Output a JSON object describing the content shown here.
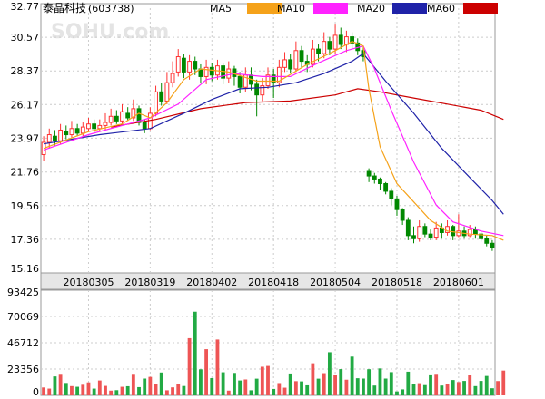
{
  "header": {
    "stock_title": "泰晶科技",
    "stock_code": "(603738)",
    "watermark": "SOHU.com"
  },
  "legend": [
    {
      "label": "MA5",
      "color": "#f5a21a"
    },
    {
      "label": "MA10",
      "color": "#ff22ff"
    },
    {
      "label": "MA20",
      "color": "#1f22a8"
    },
    {
      "label": "MA60",
      "color": "#cc0000"
    }
  ],
  "colors": {
    "up": "#ff3333",
    "down": "#008800",
    "vol_up": "#ee5555",
    "vol_down": "#22aa44",
    "grid": "#cccccc",
    "axis_band": "#e6e6e6"
  },
  "chart_data": [
    {
      "type": "candlestick",
      "ylim": [
        15.16,
        32.77
      ],
      "ytick_labels": [
        "32.77",
        "30.57",
        "28.37",
        "26.17",
        "23.97",
        "21.76",
        "19.56",
        "17.36",
        "15.16"
      ],
      "xtick_labels": [
        {
          "index": 8,
          "label": "20180305"
        },
        {
          "index": 19,
          "label": "20180319"
        },
        {
          "index": 30,
          "label": "20180402"
        },
        {
          "index": 41,
          "label": "20180418"
        },
        {
          "index": 52,
          "label": "20180504"
        },
        {
          "index": 63,
          "label": "20180518"
        },
        {
          "index": 74,
          "label": "20180601"
        }
      ],
      "candles": [
        [
          22.9,
          23.7,
          24.1,
          22.5
        ],
        [
          23.7,
          24.2,
          24.6,
          23.3
        ],
        [
          24.1,
          23.8,
          24.5,
          23.5
        ],
        [
          23.8,
          24.5,
          24.9,
          23.6
        ],
        [
          24.4,
          24.2,
          24.8,
          23.9
        ],
        [
          24.2,
          24.6,
          25.1,
          24.0
        ],
        [
          24.6,
          24.3,
          24.9,
          24.1
        ],
        [
          24.3,
          24.7,
          25.0,
          24.1
        ],
        [
          24.6,
          24.9,
          25.3,
          24.4
        ],
        [
          24.9,
          24.6,
          25.2,
          24.3
        ],
        [
          24.6,
          24.8,
          25.2,
          24.4
        ],
        [
          24.8,
          25.0,
          25.6,
          24.5
        ],
        [
          25.0,
          25.4,
          25.9,
          24.8
        ],
        [
          25.4,
          25.1,
          25.8,
          24.9
        ],
        [
          25.1,
          25.7,
          26.2,
          24.9
        ],
        [
          25.6,
          25.3,
          26.0,
          25.1
        ],
        [
          25.3,
          25.9,
          26.5,
          25.1
        ],
        [
          25.9,
          25.0,
          26.1,
          24.8
        ],
        [
          25.0,
          24.6,
          25.2,
          24.3
        ],
        [
          24.6,
          25.6,
          26.0,
          24.5
        ],
        [
          25.6,
          27.0,
          27.4,
          25.4
        ],
        [
          27.0,
          26.4,
          27.6,
          26.1
        ],
        [
          26.4,
          27.6,
          28.3,
          26.2
        ],
        [
          27.6,
          28.2,
          29.0,
          27.3
        ],
        [
          28.3,
          29.3,
          29.8,
          28.0
        ],
        [
          29.2,
          28.3,
          29.5,
          27.9
        ],
        [
          28.3,
          29.0,
          29.4,
          27.8
        ],
        [
          29.0,
          28.5,
          29.3,
          28.1
        ],
        [
          28.5,
          28.0,
          28.8,
          27.6
        ],
        [
          28.0,
          28.6,
          29.1,
          27.5
        ],
        [
          28.6,
          28.1,
          28.9,
          27.7
        ],
        [
          28.1,
          28.7,
          29.1,
          27.8
        ],
        [
          28.7,
          27.9,
          28.9,
          27.5
        ],
        [
          27.9,
          28.5,
          29.0,
          27.6
        ],
        [
          28.5,
          28.0,
          28.7,
          27.4
        ],
        [
          28.0,
          27.3,
          28.3,
          26.9
        ],
        [
          27.3,
          28.1,
          28.6,
          27.0
        ],
        [
          28.1,
          27.5,
          28.6,
          27.1
        ],
        [
          27.5,
          26.8,
          27.8,
          25.4
        ],
        [
          26.8,
          27.4,
          27.9,
          26.4
        ],
        [
          27.4,
          28.1,
          28.6,
          27.2
        ],
        [
          28.1,
          27.6,
          28.5,
          26.6
        ],
        [
          27.6,
          28.6,
          29.1,
          27.3
        ],
        [
          28.6,
          29.1,
          29.6,
          28.3
        ],
        [
          29.1,
          28.5,
          29.5,
          28.2
        ],
        [
          28.5,
          29.7,
          30.3,
          28.3
        ],
        [
          29.7,
          29.0,
          30.0,
          28.6
        ],
        [
          29.0,
          28.8,
          29.4,
          28.3
        ],
        [
          28.8,
          29.8,
          30.4,
          28.6
        ],
        [
          29.8,
          29.5,
          30.1,
          29.0
        ],
        [
          29.5,
          30.3,
          30.9,
          29.2
        ],
        [
          30.3,
          29.8,
          30.6,
          29.4
        ],
        [
          29.8,
          30.7,
          31.4,
          29.5
        ],
        [
          30.7,
          30.1,
          31.2,
          29.8
        ],
        [
          30.1,
          30.6,
          31.0,
          29.6
        ],
        [
          30.6,
          30.2,
          30.9,
          29.8
        ],
        [
          30.2,
          29.7,
          30.5,
          29.4
        ],
        [
          29.7,
          29.3,
          30.0,
          29.0
        ],
        [
          21.8,
          21.5,
          22.0,
          21.1
        ],
        [
          21.5,
          21.3,
          21.7,
          21.0
        ],
        [
          21.3,
          21.0,
          21.4,
          20.6
        ],
        [
          21.0,
          20.5,
          21.1,
          20.3
        ],
        [
          20.5,
          20.0,
          20.7,
          19.6
        ],
        [
          20.0,
          19.3,
          20.2,
          18.9
        ],
        [
          19.3,
          18.6,
          19.4,
          18.3
        ],
        [
          18.6,
          17.6,
          18.8,
          17.3
        ],
        [
          17.6,
          17.4,
          18.2,
          17.1
        ],
        [
          17.4,
          18.2,
          18.6,
          17.2
        ],
        [
          18.2,
          17.7,
          18.4,
          17.5
        ],
        [
          17.7,
          17.5,
          18.0,
          17.3
        ],
        [
          17.5,
          18.1,
          18.5,
          17.3
        ],
        [
          18.1,
          17.8,
          18.4,
          17.4
        ],
        [
          17.8,
          18.2,
          18.6,
          17.6
        ],
        [
          18.2,
          17.6,
          18.3,
          17.3
        ],
        [
          17.6,
          17.9,
          19.0,
          17.5
        ],
        [
          17.9,
          17.6,
          18.2,
          17.4
        ],
        [
          17.6,
          18.0,
          18.3,
          17.5
        ],
        [
          18.0,
          17.7,
          18.2,
          17.4
        ],
        [
          17.7,
          17.4,
          17.9,
          17.2
        ],
        [
          17.4,
          17.1,
          17.6,
          16.9
        ],
        [
          17.1,
          16.8,
          17.3,
          16.6
        ]
      ],
      "ma5": [
        [
          0,
          23.3
        ],
        [
          8,
          24.4
        ],
        [
          14,
          24.9
        ],
        [
          17,
          25.6
        ],
        [
          19,
          25.3
        ],
        [
          22,
          26.3
        ],
        [
          25,
          27.8
        ],
        [
          28,
          28.5
        ],
        [
          33,
          28.3
        ],
        [
          38,
          27.7
        ],
        [
          42,
          27.7
        ],
        [
          47,
          28.8
        ],
        [
          52,
          29.7
        ],
        [
          55,
          30.3
        ],
        [
          57,
          30.0
        ],
        [
          58,
          27.2
        ],
        [
          60,
          23.4
        ],
        [
          63,
          21.0
        ],
        [
          66,
          19.8
        ],
        [
          69,
          18.6
        ],
        [
          72,
          17.9
        ],
        [
          76,
          17.7
        ],
        [
          80,
          17.6
        ],
        [
          82,
          17.3
        ]
      ],
      "ma10": [
        [
          0,
          23.2
        ],
        [
          8,
          24.2
        ],
        [
          14,
          24.8
        ],
        [
          19,
          25.3
        ],
        [
          24,
          26.2
        ],
        [
          29,
          27.8
        ],
        [
          34,
          28.2
        ],
        [
          39,
          28.0
        ],
        [
          44,
          28.0
        ],
        [
          49,
          28.9
        ],
        [
          54,
          29.7
        ],
        [
          57,
          30.0
        ],
        [
          59,
          28.5
        ],
        [
          62,
          25.8
        ],
        [
          66,
          22.4
        ],
        [
          70,
          19.6
        ],
        [
          73,
          18.5
        ],
        [
          78,
          17.9
        ],
        [
          82,
          17.6
        ]
      ],
      "ma20": [
        [
          0,
          23.6
        ],
        [
          10,
          24.2
        ],
        [
          19,
          24.6
        ],
        [
          25,
          25.6
        ],
        [
          30,
          26.5
        ],
        [
          35,
          27.2
        ],
        [
          40,
          27.3
        ],
        [
          45,
          27.6
        ],
        [
          50,
          28.2
        ],
        [
          55,
          29.0
        ],
        [
          57,
          29.5
        ],
        [
          61,
          27.7
        ],
        [
          66,
          25.6
        ],
        [
          71,
          23.3
        ],
        [
          76,
          21.4
        ],
        [
          80,
          19.9
        ],
        [
          82,
          19.0
        ]
      ],
      "ma60": [
        [
          12,
          24.7
        ],
        [
          20,
          25.2
        ],
        [
          28,
          25.9
        ],
        [
          36,
          26.3
        ],
        [
          44,
          26.4
        ],
        [
          52,
          26.8
        ],
        [
          56,
          27.2
        ],
        [
          60,
          27.0
        ],
        [
          66,
          26.6
        ],
        [
          72,
          26.2
        ],
        [
          78,
          25.8
        ],
        [
          82,
          25.2
        ]
      ]
    },
    {
      "type": "bar",
      "ylim": [
        0,
        93425
      ],
      "ytick_labels": [
        "93425",
        "70069",
        "46712",
        "23356",
        "0"
      ],
      "values": [
        7000,
        6000,
        16800,
        19100,
        11000,
        8200,
        7600,
        9400,
        11500,
        6000,
        13200,
        8400,
        4200,
        4600,
        7600,
        8100,
        19100,
        7300,
        14900,
        16400,
        10100,
        20300,
        4500,
        7100,
        9800,
        8300,
        50800,
        74300,
        23100,
        41000,
        15300,
        49600,
        20500,
        4200,
        19900,
        13200,
        14100,
        4500,
        14800,
        25400,
        26100,
        5700,
        10900,
        6800,
        19400,
        12600,
        12400,
        8900,
        28500,
        14800,
        19700,
        38300,
        18200,
        23300,
        13900,
        34400,
        15200,
        14900,
        23200,
        8700,
        23900,
        14900,
        20600,
        3500,
        5300,
        21000,
        10300,
        10800,
        9100,
        18600,
        19100,
        8700,
        10200,
        13600,
        11800,
        12800,
        18400,
        8200,
        12800,
        17200,
        6300,
        12700,
        22000
      ]
    }
  ]
}
